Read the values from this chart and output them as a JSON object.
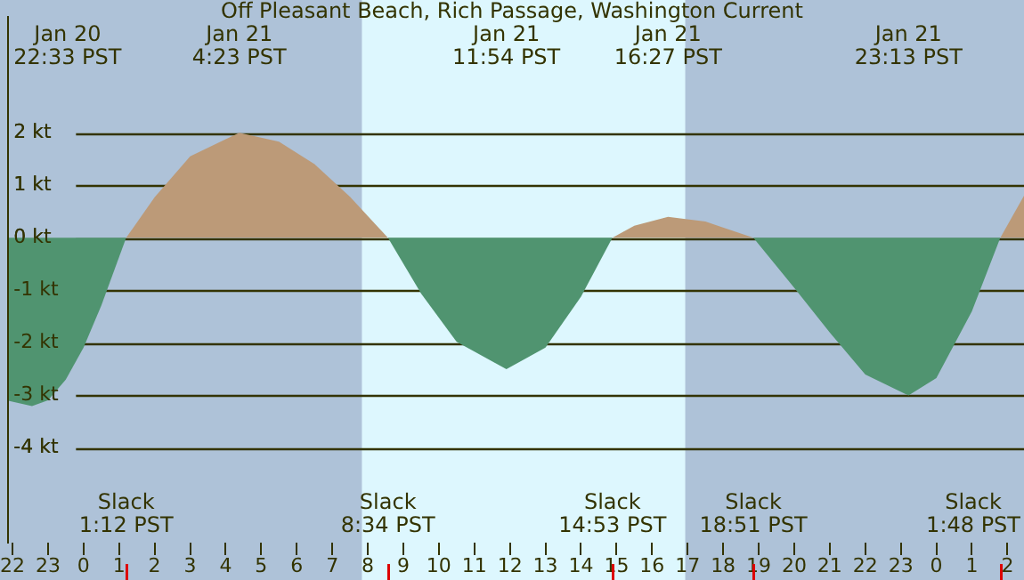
{
  "chart_data": {
    "type": "area",
    "title": "Off Pleasant Beach, Rich Passage, Washington Current",
    "xlim": [
      "--01-20T21:53",
      "--01-22T02:28"
    ],
    "xticks": [
      {
        "value": "--01-20T22:00",
        "label": "22"
      },
      {
        "value": "--01-20T23:00",
        "label": "23"
      },
      {
        "value": "--01-21T00:00",
        "label": "0"
      },
      {
        "value": "--01-21T01:00",
        "label": "1"
      },
      {
        "value": "--01-21T02:00",
        "label": "2"
      },
      {
        "value": "--01-21T03:00",
        "label": "3"
      },
      {
        "value": "--01-21T04:00",
        "label": "4"
      },
      {
        "value": "--01-21T05:00",
        "label": "5"
      },
      {
        "value": "--01-21T06:00",
        "label": "6"
      },
      {
        "value": "--01-21T07:00",
        "label": "7"
      },
      {
        "value": "--01-21T08:00",
        "label": "8"
      },
      {
        "value": "--01-21T09:00",
        "label": "9"
      },
      {
        "value": "--01-21T10:00",
        "label": "10"
      },
      {
        "value": "--01-21T11:00",
        "label": "11"
      },
      {
        "value": "--01-21T12:00",
        "label": "12"
      },
      {
        "value": "--01-21T13:00",
        "label": "13"
      },
      {
        "value": "--01-21T14:00",
        "label": "14"
      },
      {
        "value": "--01-21T15:00",
        "label": "15"
      },
      {
        "value": "--01-21T16:00",
        "label": "16"
      },
      {
        "value": "--01-21T17:00",
        "label": "17"
      },
      {
        "value": "--01-21T18:00",
        "label": "18"
      },
      {
        "value": "--01-21T19:00",
        "label": "19"
      },
      {
        "value": "--01-21T20:00",
        "label": "20"
      },
      {
        "value": "--01-21T21:00",
        "label": "21"
      },
      {
        "value": "--01-21T22:00",
        "label": "22"
      },
      {
        "value": "--01-21T23:00",
        "label": "23"
      },
      {
        "value": "--01-22T00:00",
        "label": "0"
      },
      {
        "value": "--01-22T01:00",
        "label": "1"
      },
      {
        "value": "--01-22T02:00",
        "label": "2"
      }
    ],
    "ylim": [
      -5.8,
      4.2
    ],
    "yticks": [
      {
        "value": -4,
        "label": "-4 kt"
      },
      {
        "value": -3,
        "label": "-3 kt"
      },
      {
        "value": -2,
        "label": "-2 kt"
      },
      {
        "value": -1,
        "label": "-1 kt"
      },
      {
        "value": 0,
        "label": "0 kt"
      },
      {
        "value": 1,
        "label": "1 kt"
      },
      {
        "value": 2,
        "label": "2 kt"
      }
    ],
    "grid": "y",
    "legend": false,
    "bands": [
      {
        "axis": "x",
        "from": "--01-21T07:50",
        "to": "--01-21T16:56",
        "color": "#ddf7fe"
      }
    ],
    "ref_lines": [
      {
        "axis": "x",
        "value": "--01-21T01:12",
        "label": "Slack\n1:12 PST",
        "color": "#dd0000"
      },
      {
        "axis": "x",
        "value": "--01-21T08:34",
        "label": "Slack\n8:34 PST",
        "color": "#dd0000"
      },
      {
        "axis": "x",
        "value": "--01-21T14:53",
        "label": "Slack\n14:53 PST",
        "color": "#dd0000"
      },
      {
        "axis": "x",
        "value": "--01-21T18:51",
        "label": "Slack\n18:51 PST",
        "color": "#dd0000"
      },
      {
        "axis": "x",
        "value": "--01-22T01:48",
        "label": "Slack\n1:48 PST",
        "color": "#dd0000"
      }
    ],
    "series": [
      {
        "color": "#bc9a78",
        "x": [
          "--01-21T01:12",
          "--01-21T02:00",
          "--01-21T03:00",
          "--01-21T04:23",
          "--01-21T05:30",
          "--01-21T06:30",
          "--01-21T07:30",
          "--01-21T08:34",
          "--01-21T11:54",
          "--01-21T14:53",
          "--01-21T15:30",
          "--01-21T16:27",
          "--01-21T17:30",
          "--01-21T18:51",
          "--01-21T22:00",
          "--01-22T01:48",
          "--01-22T02:28"
        ],
        "values": [
          0,
          0.77,
          1.55,
          2.0,
          1.83,
          1.4,
          0.78,
          0,
          null,
          0,
          0.23,
          0.4,
          0.31,
          0,
          null,
          0,
          0.8
        ]
      },
      {
        "color": "#509470",
        "x": [
          "--01-20T21:53",
          "--01-20T22:33",
          "--01-20T23:00",
          "--01-20T23:30",
          "--01-21T00:00",
          "--01-21T00:30",
          "--01-21T01:12",
          "--01-21T04:23",
          "--01-21T08:34",
          "--01-21T09:30",
          "--01-21T10:30",
          "--01-21T11:54",
          "--01-21T13:00",
          "--01-21T14:00",
          "--01-21T14:53",
          "--01-21T16:27",
          "--01-21T18:51",
          "--01-21T20:00",
          "--01-21T21:00",
          "--01-21T22:00",
          "--01-21T23:13",
          "--01-22T00:00",
          "--01-22T01:00",
          "--01-22T01:48"
        ],
        "values": [
          -3.1,
          -3.2,
          -3.09,
          -2.7,
          -2.09,
          -1.29,
          0,
          null,
          0,
          -1.06,
          -1.98,
          -2.5,
          -2.09,
          -1.12,
          0,
          null,
          0,
          -0.95,
          -1.8,
          -2.6,
          -3.0,
          -2.67,
          -1.4,
          0
        ]
      }
    ],
    "annotations": [
      "Jan 20\n22:33 PST",
      "Jan 21\n4:23 PST",
      "Jan 21\n11:54 PST",
      "Jan 21\n16:27 PST",
      "Jan 21\n23:13 PST"
    ]
  }
}
